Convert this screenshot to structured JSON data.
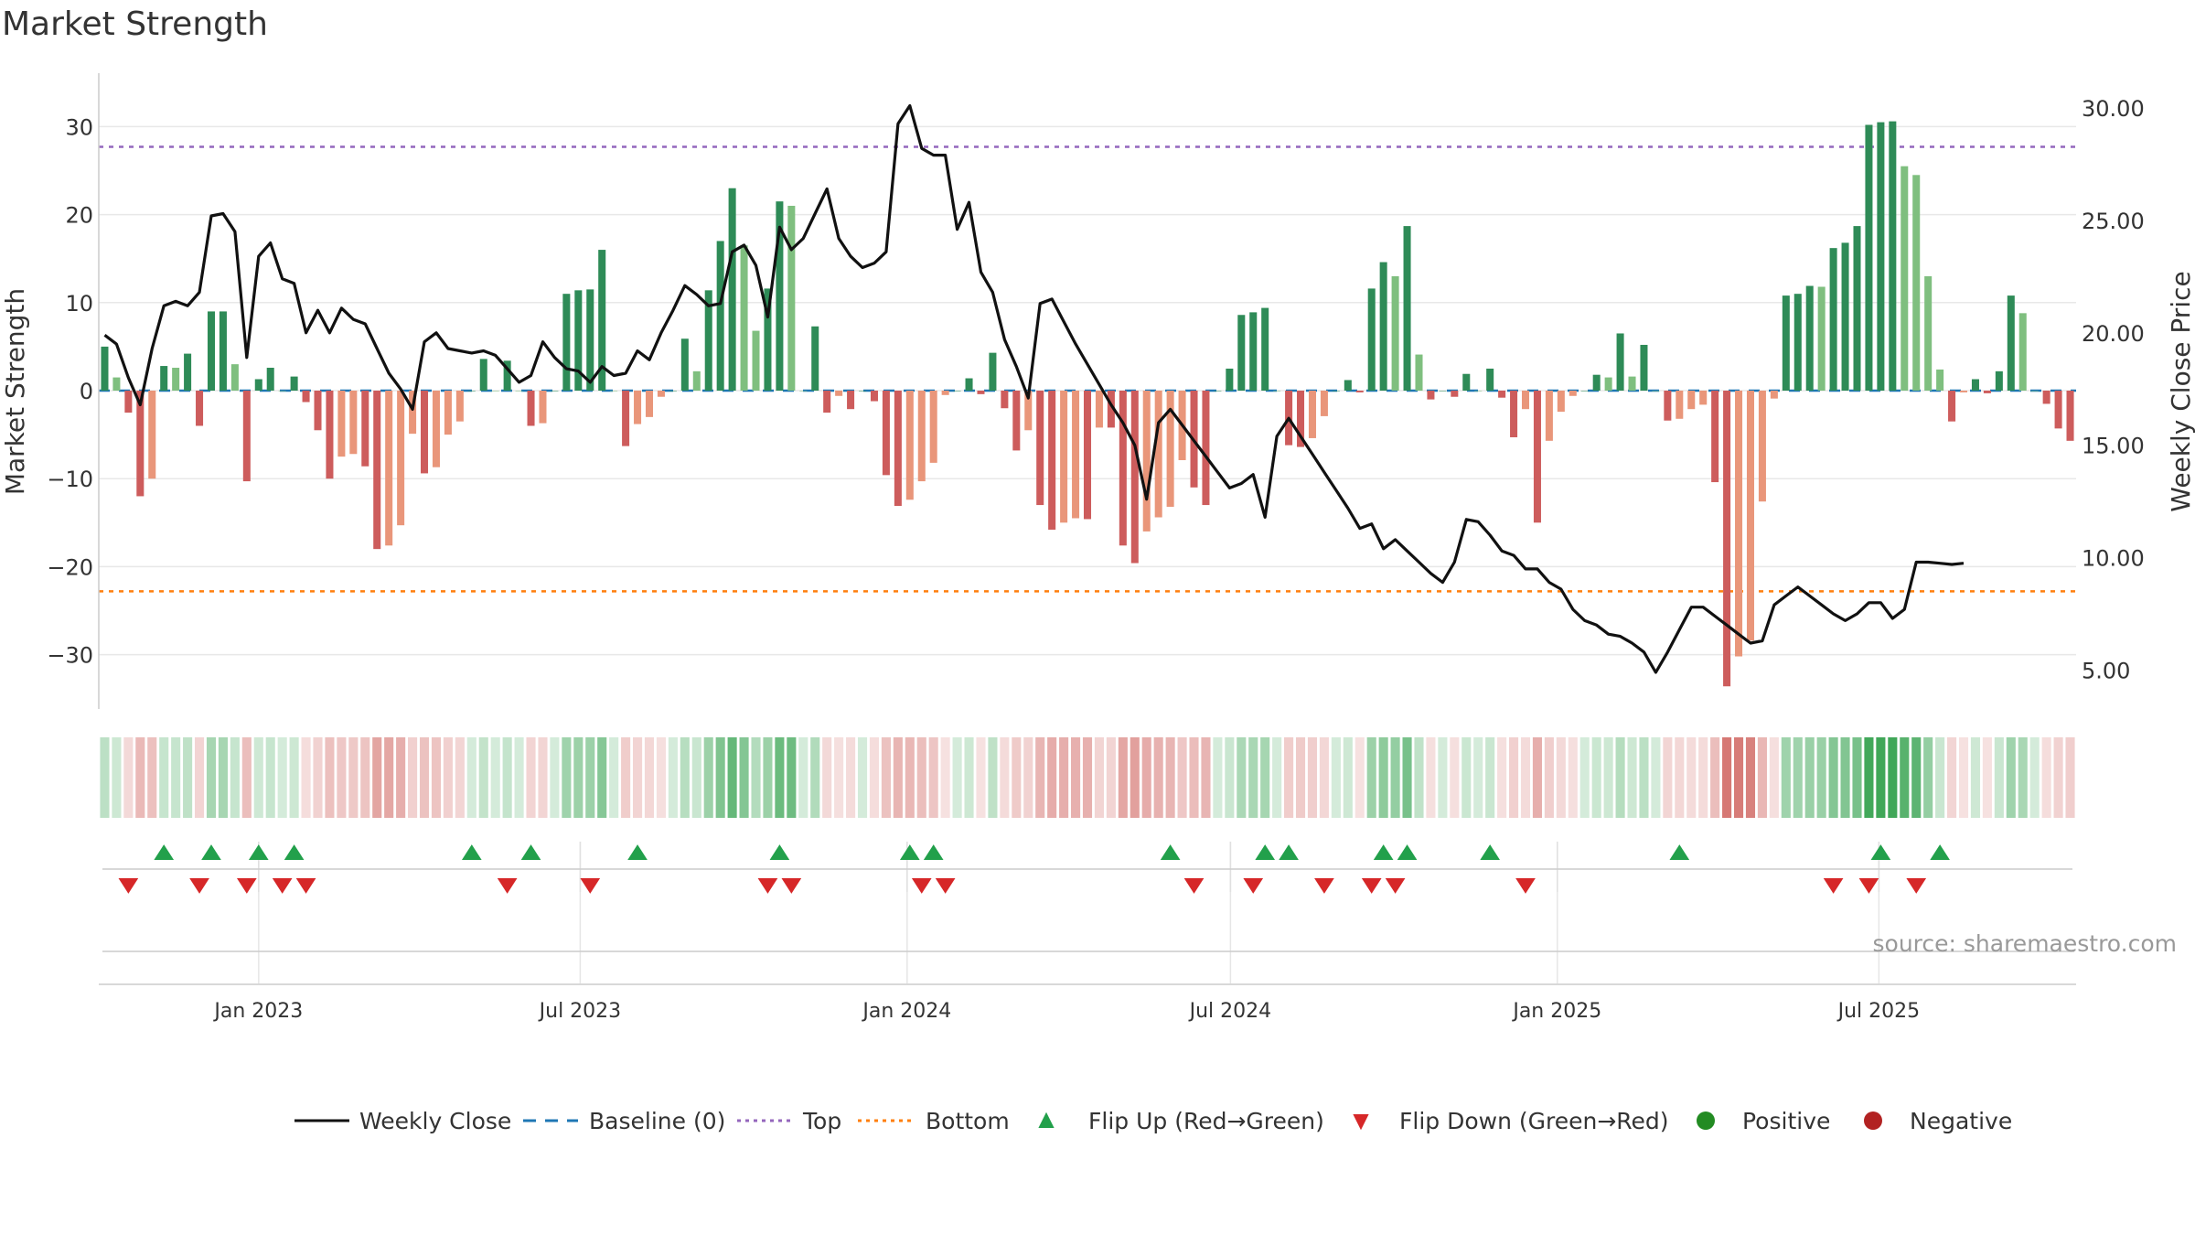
{
  "chart_data": {
    "type": "bar",
    "title": "Market Strength",
    "ylabel": "Market Strength",
    "y2label": "Weekly Close Price",
    "ylim": [
      -36,
      36
    ],
    "y2lim": [
      2.0,
      30.6
    ],
    "y_ticks": [
      30,
      20,
      10,
      0,
      -10,
      -20,
      -30
    ],
    "y_tick_labels": [
      "30",
      "20",
      "10",
      "0",
      "−10",
      "−20",
      "−30"
    ],
    "y2_ticks": [
      30,
      25,
      20,
      15,
      10,
      5
    ],
    "y2_tick_labels": [
      "30.00",
      "25.00",
      "20.00",
      "15.00",
      "10.00",
      "5.00"
    ],
    "x_start": "2022-10-03",
    "x_end": "2025-10-20",
    "x_ticks": [
      "2023-01-01",
      "2023-07-01",
      "2024-01-01",
      "2024-07-01",
      "2025-01-01",
      "2025-07-01"
    ],
    "x_tick_labels": [
      "Jan 2023",
      "Jul 2023",
      "Jan 2024",
      "Jul 2024",
      "Jan 2025",
      "Jul 2025"
    ],
    "reference_lines": {
      "top": 27.7,
      "baseline": 0,
      "bottom": -22.8
    },
    "grid": true,
    "legend_position": "bottom",
    "annotation": "source: sharemaestro.com",
    "colors": {
      "positive_strong": "#2e8b57",
      "positive_weak": "#7fbf7f",
      "negative_strong": "#cd5c5c",
      "negative_weak": "#e9967a",
      "close_line": "#111111",
      "baseline": "#1f77b4",
      "top_line": "#9467bd",
      "bottom_line": "#ff7f0e",
      "flip_up": "#22a04b",
      "flip_down": "#d62728",
      "positive_marker": "#228b22",
      "negative_marker": "#b22222"
    },
    "series": [
      {
        "name": "Market Strength",
        "values": [
          5,
          1.5,
          -2.5,
          -12,
          -10,
          2.8,
          2.6,
          4.2,
          -4,
          9,
          9,
          3,
          -10.3,
          1.3,
          2.6,
          0,
          1.6,
          -1.3,
          -4.5,
          -10,
          -7.5,
          -7.2,
          -8.6,
          -18,
          -17.6,
          -15.3,
          -4.9,
          -9.4,
          -8.7,
          -5,
          -3.5,
          0,
          3.6,
          0,
          3.4,
          0,
          -4,
          -3.7,
          0,
          11,
          11.4,
          11.5,
          16,
          0,
          -6.3,
          -3.8,
          -3,
          -0.7,
          0,
          5.9,
          2.2,
          11.4,
          17,
          23,
          16.5,
          6.8,
          11.6,
          21.5,
          21,
          0,
          7.3,
          -2.5,
          -0.6,
          -2.1,
          0,
          -1.2,
          -9.6,
          -13.1,
          -12.4,
          -10.3,
          -8.2,
          -0.5,
          0,
          1.4,
          -0.4,
          4.3,
          -2,
          -6.8,
          -4.5,
          -13,
          -15.8,
          -15,
          -14.5,
          -14.6,
          -4.2,
          -4.2,
          -17.6,
          -19.6,
          -16,
          -14.4,
          -13.2,
          -7.9,
          -11,
          -13,
          0,
          2.5,
          8.6,
          8.9,
          9.4,
          0,
          -6.2,
          -6.4,
          -5.4,
          -2.9,
          0,
          1.2,
          -0.2,
          11.6,
          14.6,
          13,
          18.7,
          4.1,
          -1,
          0,
          -0.7,
          1.9,
          0,
          2.5,
          -0.8,
          -5.3,
          -2.1,
          -15,
          -5.7,
          -2.4,
          -0.6,
          0,
          1.8,
          1.5,
          6.5,
          1.6,
          5.2,
          0,
          -3.4,
          -3.2,
          -2.1,
          -1.6,
          -10.4,
          -33.6,
          -30.2,
          -28.4,
          -12.6,
          -0.9,
          10.8,
          11,
          11.9,
          11.8,
          16.2,
          16.8,
          18.7,
          30.2,
          30.5,
          30.6,
          25.5,
          24.5,
          13,
          2.4,
          -3.5,
          -0.2,
          1.3,
          -0.3,
          2.2,
          10.8,
          8.8,
          0,
          -1.5,
          -4.3,
          -5.7
        ]
      },
      {
        "name": "Weekly Close",
        "values": [
          19.9,
          19.5,
          18.0,
          16.8,
          19.3,
          21.2,
          21.4,
          21.2,
          21.8,
          25.2,
          25.3,
          24.5,
          18.9,
          23.4,
          24.0,
          22.4,
          22.2,
          20.0,
          21.0,
          20.0,
          21.1,
          20.6,
          20.4,
          19.3,
          18.2,
          17.5,
          16.6,
          19.6,
          20.0,
          19.3,
          19.2,
          19.1,
          19.2,
          19.0,
          18.4,
          17.8,
          18.1,
          19.6,
          18.9,
          18.4,
          18.3,
          17.8,
          18.5,
          18.1,
          18.2,
          19.2,
          18.8,
          20.0,
          21.0,
          22.1,
          21.7,
          21.2,
          21.3,
          23.6,
          23.9,
          23.0,
          20.7,
          24.7,
          23.7,
          24.2,
          25.3,
          26.4,
          24.2,
          23.4,
          22.9,
          23.1,
          23.6,
          29.3,
          30.1,
          28.2,
          27.9,
          27.9,
          24.6,
          25.8,
          22.7,
          21.8,
          19.7,
          18.5,
          17.1,
          21.3,
          21.5,
          20.5,
          19.5,
          18.6,
          17.7,
          16.8,
          16.0,
          15.0,
          12.6,
          16.0,
          16.6,
          15.9,
          15.2,
          14.5,
          13.8,
          13.1,
          13.3,
          13.7,
          11.8,
          15.4,
          16.2,
          15.4,
          14.6,
          13.8,
          13.0,
          12.2,
          11.3,
          11.5,
          10.4,
          10.8,
          10.3,
          9.8,
          9.3,
          8.9,
          9.8,
          11.7,
          11.6,
          11.0,
          10.3,
          10.1,
          9.5,
          9.5,
          8.9,
          8.6,
          7.7,
          7.2,
          7.0,
          6.6,
          6.5,
          6.2,
          5.8,
          4.9,
          5.8,
          6.8,
          7.8,
          7.8,
          7.4,
          7.0,
          6.6,
          6.2,
          6.3,
          7.9,
          8.3,
          8.7,
          8.3,
          7.9,
          7.5,
          7.2,
          7.5,
          8.0,
          8.0,
          7.3,
          7.7,
          9.8,
          9.8,
          9.75,
          9.7,
          9.75
        ]
      }
    ],
    "flip_up_weeks": [
      5,
      9,
      13,
      16,
      31,
      36,
      45,
      57,
      68,
      70,
      90,
      98,
      100,
      108,
      110,
      117,
      133,
      150,
      155
    ],
    "flip_down_weeks": [
      2,
      8,
      12,
      15,
      17,
      34,
      41,
      56,
      58,
      69,
      71,
      92,
      97,
      103,
      107,
      109,
      120,
      146,
      149,
      153
    ]
  }
}
